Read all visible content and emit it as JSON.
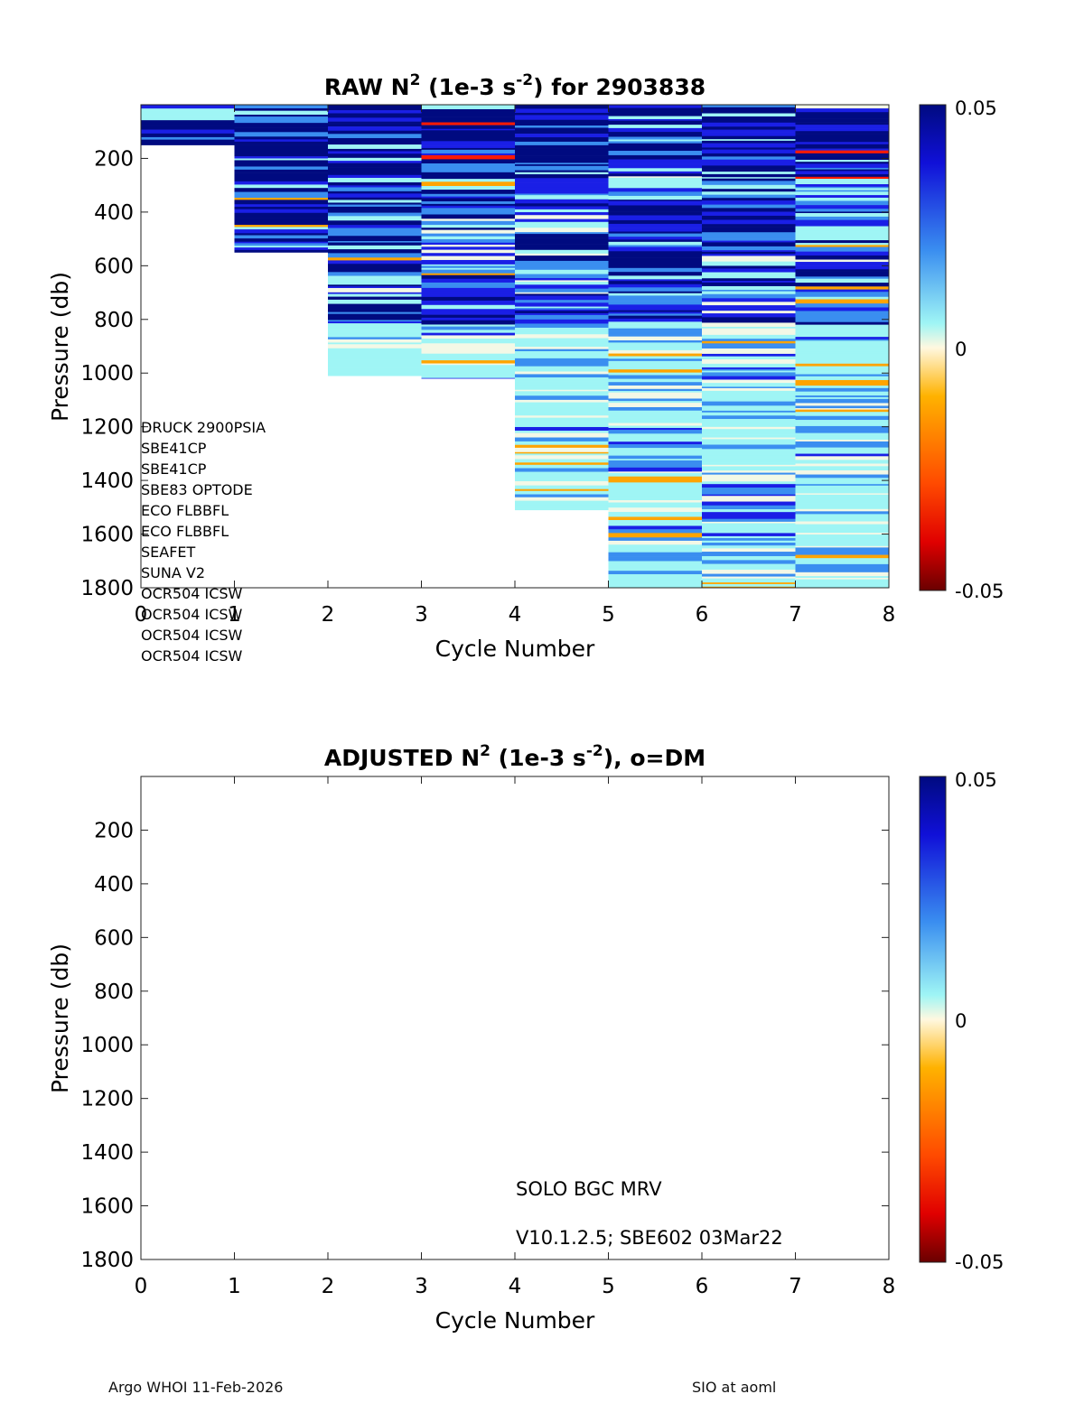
{
  "chart_data": [
    {
      "type": "heatmap",
      "title_main": "RAW N",
      "title_sup": "2",
      "title_units_pre": " (1e-3 s",
      "title_units_sup": "-2",
      "title_suffix": ") for 2903838",
      "xlabel": "Cycle Number",
      "ylabel": "Pressure (db)",
      "xlim": [
        0,
        8
      ],
      "ylim": [
        0,
        1800
      ],
      "xticks": [
        "0",
        "1",
        "2",
        "3",
        "4",
        "5",
        "6",
        "7",
        "8"
      ],
      "yticks": [
        "200",
        "400",
        "600",
        "800",
        "1000",
        "1200",
        "1400",
        "1600",
        "1800"
      ],
      "colorbar": {
        "min": -0.05,
        "max": 0.05,
        "tick_labels": [
          "0.05",
          "0",
          "-0.05"
        ]
      },
      "profiles": [
        {
          "cycle_start": 0,
          "cycle_end": 1,
          "max_pressure": 150
        },
        {
          "cycle_start": 1,
          "cycle_end": 2,
          "max_pressure": 550
        },
        {
          "cycle_start": 2,
          "cycle_end": 3,
          "max_pressure": 1010
        },
        {
          "cycle_start": 3,
          "cycle_end": 4,
          "max_pressure": 1020
        },
        {
          "cycle_start": 4,
          "cycle_end": 5,
          "max_pressure": 1510
        },
        {
          "cycle_start": 5,
          "cycle_end": 6,
          "max_pressure": 1800
        },
        {
          "cycle_start": 6,
          "cycle_end": 7,
          "max_pressure": 1800
        },
        {
          "cycle_start": 7,
          "cycle_end": 8,
          "max_pressure": 1800
        }
      ],
      "sensor_list": [
        "DRUCK 2900PSIA",
        "SBE41CP",
        "SBE41CP",
        "SBE83 OPTODE",
        "ECO FLBBFL",
        "ECO FLBBFL",
        "SEAFET",
        "SUNA V2",
        "OCR504 ICSW",
        "OCR504 ICSW",
        "OCR504 ICSW",
        "OCR504 ICSW"
      ]
    },
    {
      "type": "heatmap",
      "title_main": "ADJUSTED N",
      "title_sup": "2",
      "title_units_pre": " (1e-3 s",
      "title_units_sup": "-2",
      "title_suffix": "), o=DM",
      "xlabel": "Cycle Number",
      "ylabel": "Pressure (db)",
      "xlim": [
        0,
        8
      ],
      "ylim": [
        0,
        1800
      ],
      "xticks": [
        "0",
        "1",
        "2",
        "3",
        "4",
        "5",
        "6",
        "7",
        "8"
      ],
      "yticks": [
        "200",
        "400",
        "600",
        "800",
        "1000",
        "1200",
        "1400",
        "1600",
        "1800"
      ],
      "colorbar": {
        "min": -0.05,
        "max": 0.05,
        "tick_labels": [
          "0.05",
          "0",
          "-0.05"
        ]
      },
      "profiles": [],
      "annotations": [
        "SOLO BGC MRV",
        "V10.1.2.5; SBE602 03Mar22"
      ]
    }
  ],
  "footer": {
    "left": "Argo WHOI 11-Feb-2026",
    "center": "SIO at aoml"
  },
  "colors": {
    "dark_blue": "#000a80",
    "blue": "#1a1fe6",
    "mid_blue": "#3a8ef0",
    "cyan": "#9ff5f5",
    "pale": "#f3f8e6",
    "orange": "#ffa400",
    "red": "#ff1a00",
    "dark_red": "#7a0000"
  }
}
